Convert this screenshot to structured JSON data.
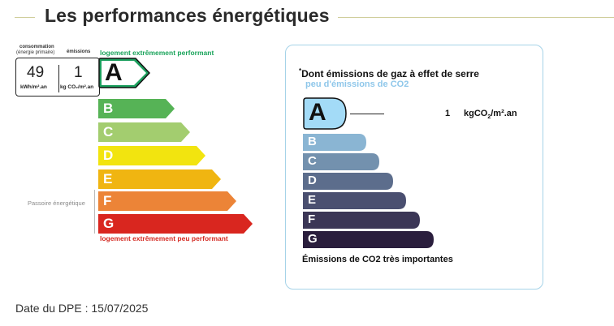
{
  "section": {
    "title": "Les performances énergétiques"
  },
  "dpe": {
    "consumption_label": "consommation",
    "consumption_sublabel": "(énergie primaire)",
    "emissions_label": "émissions",
    "consumption_value": "49",
    "consumption_unit": "kWh/m².an",
    "emissions_value": "1",
    "emissions_unit": "kg CO₂/m².an",
    "top_caption": "logement extrêmement performant",
    "bottom_caption": "logement extrêmement peu performant",
    "passoire_label": "Passoire énergétique",
    "current_grade": "A",
    "grades": [
      {
        "letter": "A",
        "color": "#1a9e5c"
      },
      {
        "letter": "B",
        "color": "#56b356"
      },
      {
        "letter": "C",
        "color": "#a3cd6f"
      },
      {
        "letter": "D",
        "color": "#f2e40f"
      },
      {
        "letter": "E",
        "color": "#f0b511"
      },
      {
        "letter": "F",
        "color": "#ec8437"
      },
      {
        "letter": "G",
        "color": "#d9261f"
      }
    ]
  },
  "ges": {
    "title_marker": "*",
    "title": "Dont émissions de gaz à effet de serre",
    "subtitle": "peu d'émissions de CO2",
    "current_grade": "A",
    "value": "1",
    "unit_prefix": "kgCO",
    "unit_sub": "2",
    "unit_suffix": "/m².an",
    "bottom_caption": "Émissions de CO2 très importantes",
    "grades": [
      {
        "letter": "A",
        "color": "#a3dbf7"
      },
      {
        "letter": "B",
        "color": "#8ab5d3"
      },
      {
        "letter": "C",
        "color": "#7391ae"
      },
      {
        "letter": "D",
        "color": "#5c6d8c"
      },
      {
        "letter": "E",
        "color": "#4a4f70"
      },
      {
        "letter": "F",
        "color": "#3b3656"
      },
      {
        "letter": "G",
        "color": "#2a1e3d"
      }
    ]
  },
  "footer": {
    "date_text": "Date du DPE : 15/07/2025"
  }
}
